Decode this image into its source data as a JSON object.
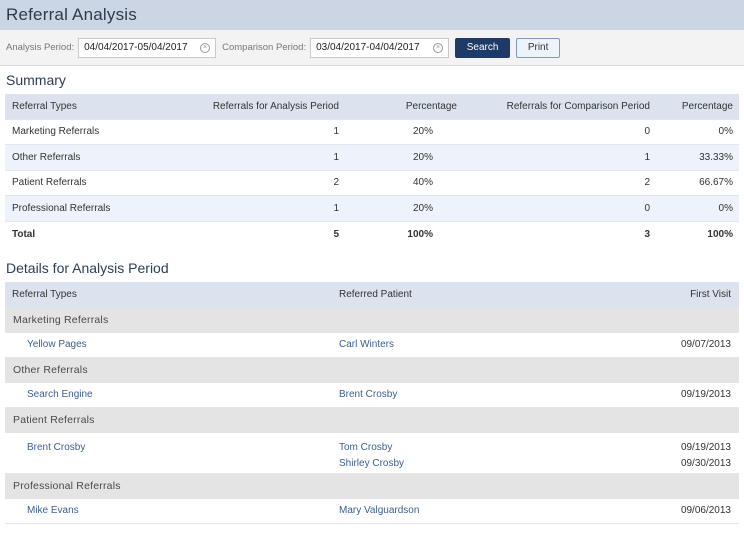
{
  "header": {
    "title": "Referral Analysis"
  },
  "filters": {
    "analysis_label": "Analysis Period:",
    "analysis_value": "04/04/2017-05/04/2017",
    "comparison_label": "Comparison Period:",
    "comparison_value": "03/04/2017-04/04/2017",
    "clear_glyph": "×",
    "search_label": "Search",
    "print_label": "Print"
  },
  "summary": {
    "title": "Summary",
    "columns": [
      "Referral Types",
      "Referrals for Analysis Period",
      "Percentage",
      "Referrals for Comparison Period",
      "Percentage"
    ],
    "rows": [
      [
        "Marketing Referrals",
        "1",
        "20%",
        "0",
        "0%"
      ],
      [
        "Other Referrals",
        "1",
        "20%",
        "1",
        "33.33%"
      ],
      [
        "Patient Referrals",
        "2",
        "40%",
        "2",
        "66.67%"
      ],
      [
        "Professional Referrals",
        "1",
        "20%",
        "0",
        "0%"
      ]
    ],
    "total": [
      "Total",
      "5",
      "100%",
      "3",
      "100%"
    ]
  },
  "details": {
    "title": "Details for Analysis Period",
    "columns": [
      "Referral Types",
      "Referred Patient",
      "First Visit"
    ],
    "groups": [
      {
        "name": "Marketing Referrals",
        "source": "Yellow Pages",
        "patients": [
          "Carl Winters"
        ],
        "visits": [
          "09/07/2013"
        ]
      },
      {
        "name": "Other Referrals",
        "source": "Search Engine",
        "patients": [
          "Brent Crosby"
        ],
        "visits": [
          "09/19/2013"
        ]
      },
      {
        "name": "Patient Referrals",
        "source": "Brent Crosby",
        "patients": [
          "Tom Crosby",
          "Shirley Crosby"
        ],
        "visits": [
          "09/19/2013",
          "09/30/2013"
        ]
      },
      {
        "name": "Professional Referrals",
        "source": "Mike Evans",
        "patients": [
          "Mary Valguardson"
        ],
        "visits": [
          "09/06/2013"
        ]
      }
    ]
  }
}
